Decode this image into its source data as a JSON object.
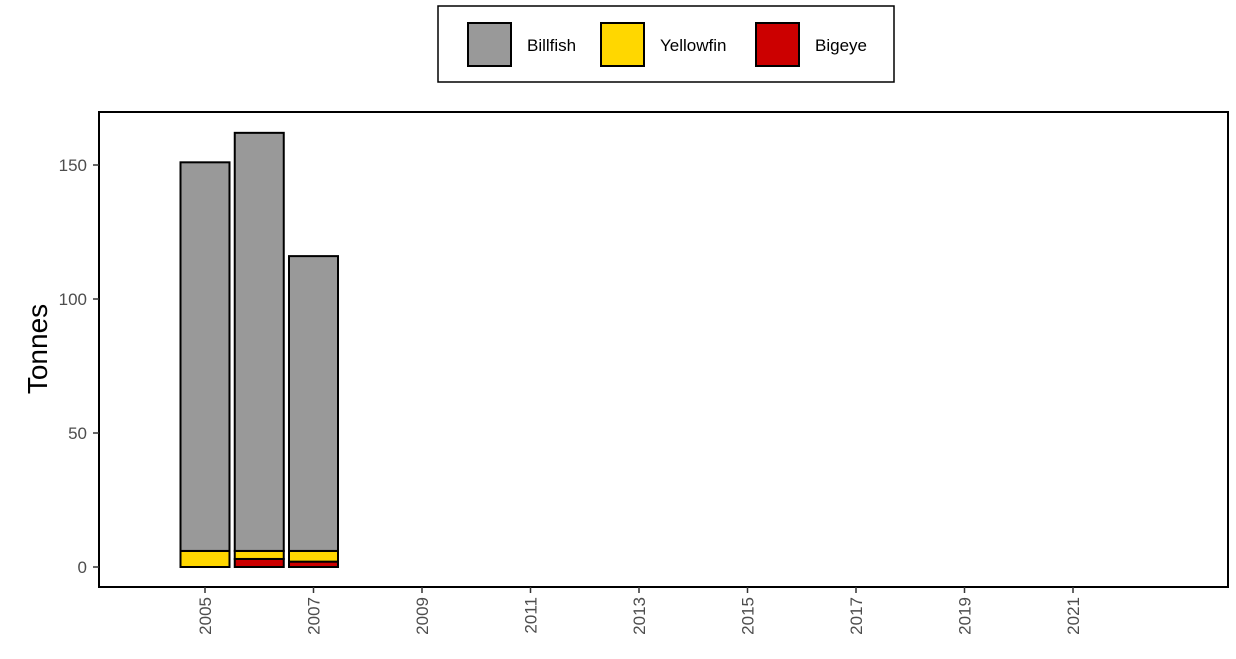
{
  "chart_data": {
    "type": "bar",
    "stacked": true,
    "title": "",
    "xlabel": "",
    "ylabel": "Tonnes",
    "x_ticks": [
      "2005",
      "2007",
      "2009",
      "2011",
      "2013",
      "2015",
      "2017",
      "2019",
      "2021"
    ],
    "categories": [
      "2005",
      "2006",
      "2007"
    ],
    "ylim": [
      0,
      165
    ],
    "y_ticks": [
      "0",
      "50",
      "100",
      "150"
    ],
    "legend_position": "top",
    "series": [
      {
        "name": "Bigeye",
        "color": "#CC0000",
        "values": [
          0,
          3,
          2
        ]
      },
      {
        "name": "Yellowfin",
        "color": "#FFD700",
        "values": [
          6,
          3,
          4
        ]
      },
      {
        "name": "Billfish",
        "color": "#999999",
        "values": [
          145,
          156,
          110
        ]
      }
    ],
    "legend_order": [
      "Billfish",
      "Yellowfin",
      "Bigeye"
    ],
    "grid": false
  }
}
